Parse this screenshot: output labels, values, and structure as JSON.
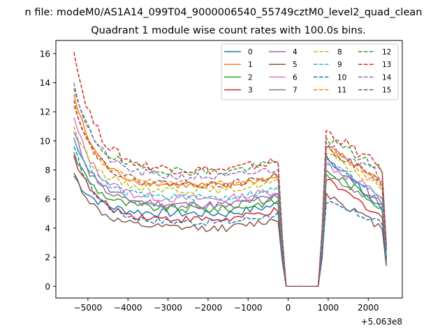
{
  "chart_data": {
    "type": "line",
    "suptitle": "n file: modeM0/AS1A14_099T04_9000006540_55749cztM0_level2_quad_clean",
    "title": "Quadrant 1 module wise count rates with 100.0s bins.",
    "xlabel": "",
    "ylabel": "",
    "x_offset_label": "+5.063e8",
    "xlim": [
      -5800,
      2850
    ],
    "ylim": [
      -0.8,
      16.9
    ],
    "xticks": [
      -5000,
      -4000,
      -3000,
      -2000,
      -1000,
      0,
      1000,
      2000
    ],
    "xtick_labels": [
      "−5000",
      "−4000",
      "−3000",
      "−2000",
      "−1000",
      "0",
      "1000",
      "2000"
    ],
    "yticks": [
      0,
      2,
      4,
      6,
      8,
      10,
      12,
      14,
      16
    ],
    "ytick_labels": [
      "0",
      "2",
      "4",
      "6",
      "8",
      "10",
      "12",
      "14",
      "16"
    ],
    "grid": false,
    "legend_position": "top-right",
    "legend_columns": 4,
    "segment1": {
      "x_start": -5350,
      "x_end": -250,
      "step": 100
    },
    "segment2": {
      "x_start": 950,
      "x_end": 2450,
      "step": 100
    },
    "series": [
      {
        "name": "0",
        "color": "#1f77b4",
        "dash": "solid",
        "start": 7.6,
        "plateau": 5.0,
        "peak2": 9.0,
        "end2": 5.2,
        "noise": 0.3
      },
      {
        "name": "1",
        "color": "#ff7f0e",
        "dash": "solid",
        "start": 13.2,
        "plateau": 6.9,
        "peak2": 9.6,
        "end2": 7.2,
        "noise": 0.25
      },
      {
        "name": "2",
        "color": "#2ca02c",
        "dash": "solid",
        "start": 9.2,
        "plateau": 5.3,
        "peak2": 8.0,
        "end2": 5.5,
        "noise": 0.3
      },
      {
        "name": "3",
        "color": "#d62728",
        "dash": "solid",
        "start": 9.0,
        "plateau": 4.6,
        "peak2": 7.3,
        "end2": 4.8,
        "noise": 0.25
      },
      {
        "name": "4",
        "color": "#9467bd",
        "dash": "solid",
        "start": 10.6,
        "plateau": 5.6,
        "peak2": 8.8,
        "end2": 5.7,
        "noise": 0.3
      },
      {
        "name": "5",
        "color": "#8c564b",
        "dash": "solid",
        "start": 7.8,
        "plateau": 4.0,
        "peak2": 6.4,
        "end2": 4.0,
        "noise": 0.25
      },
      {
        "name": "6",
        "color": "#e377c2",
        "dash": "solid",
        "start": 11.6,
        "plateau": 6.0,
        "peak2": 8.4,
        "end2": 6.2,
        "noise": 0.3
      },
      {
        "name": "7",
        "color": "#7f7f7f",
        "dash": "solid",
        "start": 10.2,
        "plateau": 5.5,
        "peak2": 7.7,
        "end2": 5.7,
        "noise": 0.25
      },
      {
        "name": "8",
        "color": "#bcbd22",
        "dash": "dashed",
        "start": 11.0,
        "plateau": 6.6,
        "peak2": 9.1,
        "end2": 6.7,
        "noise": 0.25
      },
      {
        "name": "9",
        "color": "#17becf",
        "dash": "dashed",
        "start": 10.2,
        "plateau": 6.1,
        "peak2": 8.6,
        "end2": 6.2,
        "noise": 0.25
      },
      {
        "name": "10",
        "color": "#1f77b4",
        "dash": "dashed",
        "start": 9.6,
        "plateau": 4.4,
        "peak2": 5.7,
        "end2": 4.4,
        "noise": 0.25
      },
      {
        "name": "11",
        "color": "#ff7f0e",
        "dash": "dashed",
        "start": 12.4,
        "plateau": 7.0,
        "peak2": 9.6,
        "end2": 7.0,
        "noise": 0.25
      },
      {
        "name": "12",
        "color": "#2ca02c",
        "dash": "dashed",
        "start": 13.6,
        "plateau": 7.9,
        "peak2": 10.2,
        "end2": 8.0,
        "noise": 0.3
      },
      {
        "name": "13",
        "color": "#d62728",
        "dash": "dashed",
        "start": 16.1,
        "plateau": 8.0,
        "peak2": 10.7,
        "end2": 8.1,
        "noise": 0.35
      },
      {
        "name": "14",
        "color": "#9467bd",
        "dash": "dashed",
        "start": 14.0,
        "plateau": 7.5,
        "peak2": 9.9,
        "end2": 7.6,
        "noise": 0.3
      },
      {
        "name": "15",
        "color": "#8c564b",
        "dash": "dashed",
        "start": 12.8,
        "plateau": 7.0,
        "peak2": 9.6,
        "end2": 7.1,
        "noise": 0.25
      }
    ]
  }
}
